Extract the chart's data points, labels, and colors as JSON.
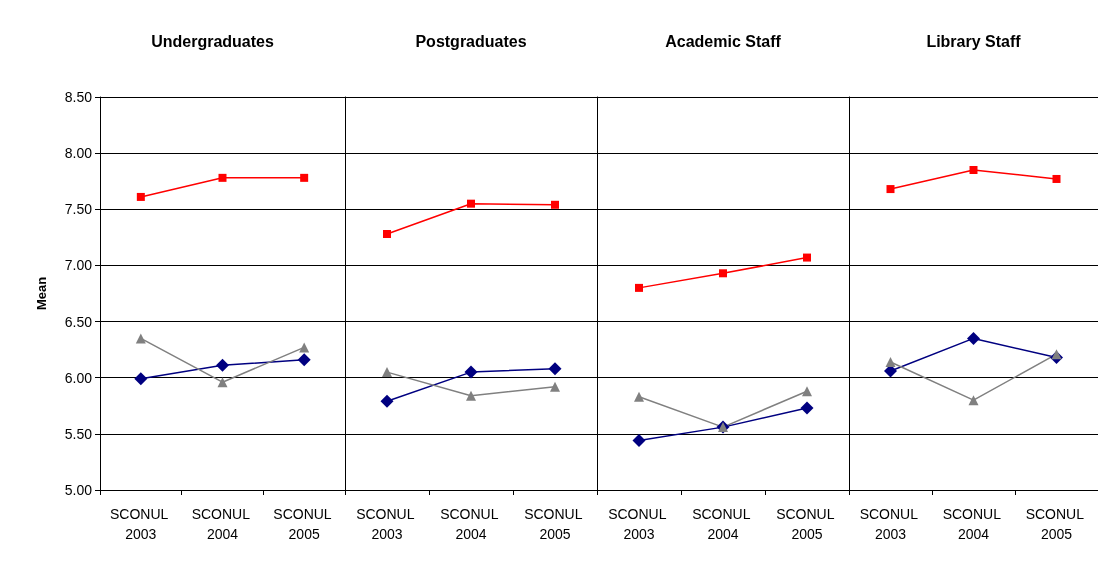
{
  "chart_data": [
    {
      "type": "line",
      "title": "Undergraduates",
      "ylabel": "Mean",
      "categories": [
        "SCONUL 2003",
        "SCONUL 2004",
        "SCONUL 2005"
      ],
      "ylim": [
        5,
        8.5
      ],
      "yticks": [
        {
          "value": 5,
          "label": "5.00"
        },
        {
          "value": 5.5,
          "label": "5.50"
        },
        {
          "value": 6,
          "label": "6.00"
        },
        {
          "value": 6.5,
          "label": "6.50"
        },
        {
          "value": 7,
          "label": "7.00"
        },
        {
          "value": 7.5,
          "label": "7.50"
        },
        {
          "value": 8,
          "label": "8.00"
        },
        {
          "value": 8.5,
          "label": "8.50"
        }
      ],
      "grid": "y",
      "series": [
        {
          "color": "#000080",
          "marker": "diamond",
          "values": [
            5.99,
            6.11,
            6.16
          ]
        },
        {
          "color": "#ff0000",
          "marker": "square",
          "values": [
            7.61,
            7.78,
            7.78
          ]
        },
        {
          "color": "#808080",
          "marker": "triangle",
          "values": [
            6.35,
            5.96,
            6.27
          ]
        }
      ]
    },
    {
      "type": "line",
      "title": "Postgraduates",
      "categories": [
        "SCONUL 2003",
        "SCONUL 2004",
        "SCONUL 2005"
      ],
      "ylim": [
        5,
        8.5
      ],
      "yticks": [
        5,
        5.5,
        6,
        6.5,
        7,
        7.5,
        8,
        8.5
      ],
      "grid": "y",
      "tick_labels": "x",
      "series": [
        {
          "color": "#000080",
          "marker": "diamond",
          "values": [
            5.79,
            6.05,
            6.08
          ]
        },
        {
          "color": "#ff0000",
          "marker": "square",
          "values": [
            7.28,
            7.55,
            7.54
          ]
        },
        {
          "color": "#808080",
          "marker": "triangle",
          "values": [
            6.05,
            5.84,
            5.92
          ]
        }
      ]
    },
    {
      "type": "line",
      "title": "Academic Staff",
      "categories": [
        "SCONUL 2003",
        "SCONUL 2004",
        "SCONUL 2005"
      ],
      "ylim": [
        5,
        8.5
      ],
      "yticks": [
        5,
        5.5,
        6,
        6.5,
        7,
        7.5,
        8,
        8.5
      ],
      "grid": "y",
      "tick_labels": "x",
      "series": [
        {
          "color": "#000080",
          "marker": "diamond",
          "values": [
            5.44,
            5.56,
            5.73
          ]
        },
        {
          "color": "#ff0000",
          "marker": "square",
          "values": [
            6.8,
            6.93,
            7.07
          ]
        },
        {
          "color": "#808080",
          "marker": "triangle",
          "values": [
            5.83,
            5.56,
            5.88
          ]
        }
      ]
    },
    {
      "type": "line",
      "title": "Library Staff",
      "categories": [
        "SCONUL 2003",
        "SCONUL 2004",
        "SCONUL 2005"
      ],
      "ylim": [
        5,
        8.5
      ],
      "yticks": [
        5,
        5.5,
        6,
        6.5,
        7,
        7.5,
        8,
        8.5
      ],
      "grid": "y",
      "tick_labels": "x",
      "series": [
        {
          "color": "#000080",
          "marker": "diamond",
          "values": [
            6.06,
            6.35,
            6.18
          ]
        },
        {
          "color": "#ff0000",
          "marker": "square",
          "values": [
            7.68,
            7.85,
            7.77
          ]
        },
        {
          "color": "#808080",
          "marker": "triangle",
          "values": [
            6.14,
            5.8,
            6.21
          ]
        }
      ]
    }
  ]
}
